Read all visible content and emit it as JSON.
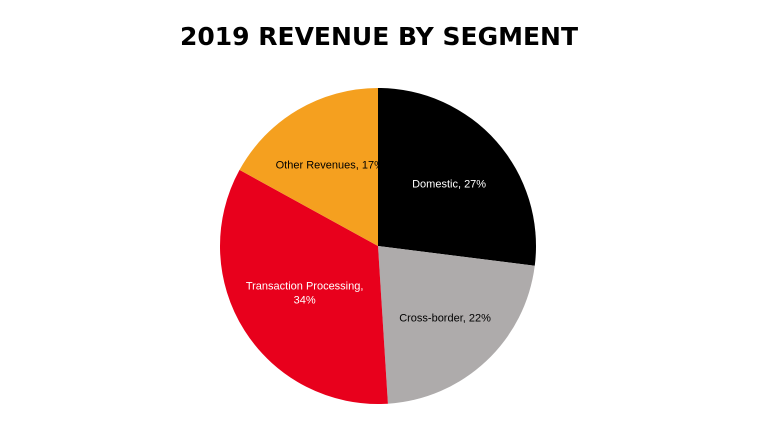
{
  "chart_data": {
    "type": "pie",
    "title": "2019 REVENUE BY SEGMENT",
    "start_angle_deg": 0,
    "direction": "clockwise",
    "slices": [
      {
        "label": "Domestic",
        "value": 27,
        "data_label": "Domestic, 27%",
        "color": "#000000",
        "text_color": "#ffffff"
      },
      {
        "label": "Cross-border",
        "value": 22,
        "data_label": "Cross-border, 22%",
        "color": "#aeabab",
        "text_color": "#000000"
      },
      {
        "label": "Transaction Processing",
        "value": 34,
        "data_label_lines": [
          "Transaction Processing,",
          "34%"
        ],
        "color": "#e8001c",
        "text_color": "#ffffff"
      },
      {
        "label": "Other Revenues",
        "value": 17,
        "data_label": "Other Revenues, 17%",
        "color": "#f5a01f",
        "text_color": "#000000"
      }
    ],
    "legend": "none"
  }
}
